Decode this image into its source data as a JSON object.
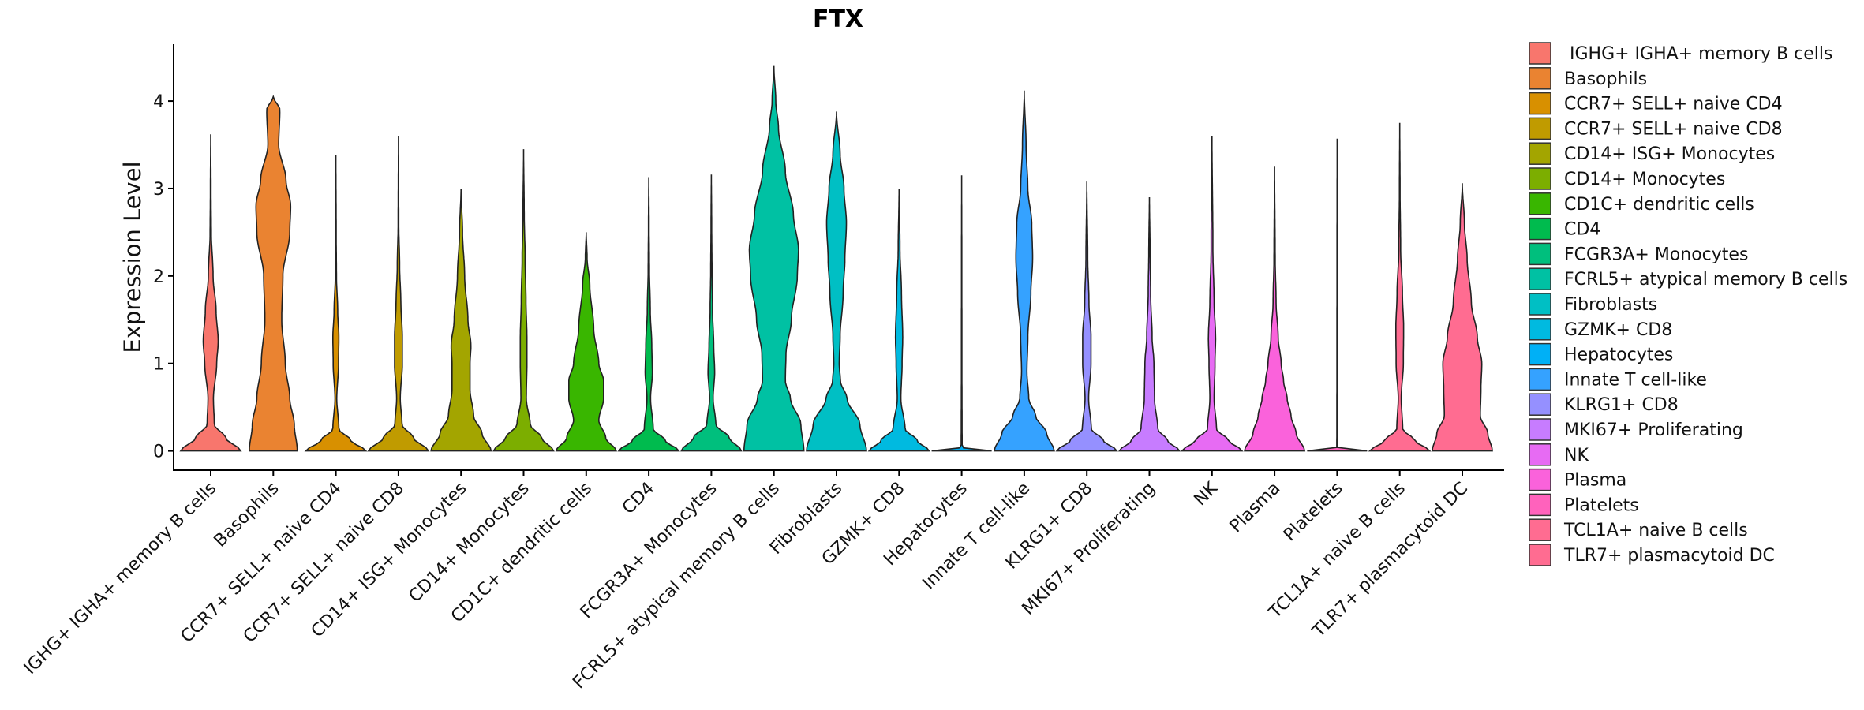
{
  "chart_data": {
    "type": "violin",
    "title": "FTX",
    "xlabel": "",
    "ylabel": "Expression Level",
    "ylim": [
      -0.22,
      4.65
    ],
    "yticks": [
      0,
      1,
      2,
      3,
      4
    ],
    "categories": [
      "IGHG+ IGHA+ memory B cells",
      "Basophils",
      "CCR7+ SELL+ naive CD4",
      "CCR7+ SELL+ naive CD8",
      "CD14+ ISG+ Monocytes",
      "CD14+ Monocytes",
      "CD1C+ dendritic cells",
      "CD4",
      "FCGR3A+ Monocytes",
      "FCRL5+ atypical memory B cells",
      "Fibroblasts",
      "GZMK+ CD8",
      "Hepatocytes",
      "Innate T cell-like",
      "KLRG1+ CD8",
      "MKI67+ Proliferating",
      "NK",
      "Plasma",
      "Platelets",
      "TCL1A+ naive B cells",
      "TLR7+ plasmacytoid DC"
    ],
    "legend_labels": [
      " IGHG+ IGHA+ memory B cells",
      "Basophils",
      "CCR7+ SELL+ naive CD4",
      "CCR7+ SELL+ naive CD8",
      "CD14+ ISG+ Monocytes",
      "CD14+ Monocytes",
      "CD1C+ dendritic cells",
      "CD4",
      "FCGR3A+ Monocytes",
      "FCRL5+ atypical memory B cells",
      "Fibroblasts",
      "GZMK+ CD8",
      "Hepatocytes",
      "Innate T cell-like",
      "KLRG1+ CD8",
      "MKI67+ Proliferating",
      "NK",
      "Plasma",
      "Platelets",
      "TCL1A+ naive B cells",
      "TLR7+ plasmacytoid DC"
    ],
    "colors": [
      "#F8766D",
      "#EA8331",
      "#D89000",
      "#C09B00",
      "#A3A500",
      "#7CAE00",
      "#39B600",
      "#00BB4E",
      "#00BF7D",
      "#00C1A3",
      "#00BFC4",
      "#00BAE0",
      "#00B0F6",
      "#35A2FF",
      "#9590FF",
      "#C77CFF",
      "#E76BF3",
      "#FA62DB",
      "#FF62BC",
      "#FF6C91",
      "#FF6C91"
    ],
    "legend_position": "right",
    "violins": [
      {
        "min": 0,
        "max": 3.62,
        "profile": [
          [
            0,
            1.0
          ],
          [
            0.15,
            0.5
          ],
          [
            0.3,
            0.12
          ],
          [
            0.6,
            0.09
          ],
          [
            1.0,
            0.2
          ],
          [
            1.25,
            0.25
          ],
          [
            1.6,
            0.18
          ],
          [
            2.0,
            0.08
          ],
          [
            2.5,
            0.02
          ],
          [
            3.0,
            0.01
          ],
          [
            3.62,
            0
          ]
        ]
      },
      {
        "min": 0,
        "max": 4.05,
        "profile": [
          [
            0,
            0.8
          ],
          [
            0.3,
            0.7
          ],
          [
            0.6,
            0.55
          ],
          [
            1.0,
            0.4
          ],
          [
            1.5,
            0.28
          ],
          [
            2.0,
            0.32
          ],
          [
            2.5,
            0.55
          ],
          [
            2.8,
            0.58
          ],
          [
            3.1,
            0.42
          ],
          [
            3.5,
            0.18
          ],
          [
            3.9,
            0.22
          ],
          [
            4.05,
            0
          ]
        ]
      },
      {
        "min": 0,
        "max": 3.38,
        "profile": [
          [
            0,
            1.0
          ],
          [
            0.12,
            0.5
          ],
          [
            0.25,
            0.1
          ],
          [
            0.6,
            0.03
          ],
          [
            1.0,
            0.09
          ],
          [
            1.3,
            0.1
          ],
          [
            1.6,
            0.06
          ],
          [
            2.0,
            0.02
          ],
          [
            2.5,
            0.01
          ],
          [
            3.38,
            0
          ]
        ]
      },
      {
        "min": 0,
        "max": 3.6,
        "profile": [
          [
            0,
            1.0
          ],
          [
            0.15,
            0.5
          ],
          [
            0.3,
            0.12
          ],
          [
            0.6,
            0.06
          ],
          [
            1.0,
            0.13
          ],
          [
            1.3,
            0.13
          ],
          [
            1.7,
            0.08
          ],
          [
            2.1,
            0.04
          ],
          [
            2.6,
            0.01
          ],
          [
            3.6,
            0
          ]
        ]
      },
      {
        "min": 0,
        "max": 3.0,
        "profile": [
          [
            0,
            1.0
          ],
          [
            0.2,
            0.7
          ],
          [
            0.4,
            0.42
          ],
          [
            0.7,
            0.3
          ],
          [
            1.0,
            0.3
          ],
          [
            1.2,
            0.33
          ],
          [
            1.5,
            0.23
          ],
          [
            2.0,
            0.12
          ],
          [
            2.5,
            0.05
          ],
          [
            3.0,
            0
          ]
        ]
      },
      {
        "min": 0,
        "max": 3.45,
        "profile": [
          [
            0,
            1.0
          ],
          [
            0.15,
            0.6
          ],
          [
            0.3,
            0.22
          ],
          [
            0.6,
            0.09
          ],
          [
            1.0,
            0.11
          ],
          [
            1.3,
            0.11
          ],
          [
            1.7,
            0.08
          ],
          [
            2.2,
            0.05
          ],
          [
            2.7,
            0.02
          ],
          [
            3.45,
            0
          ]
        ]
      },
      {
        "min": 0,
        "max": 2.5,
        "profile": [
          [
            0,
            1.0
          ],
          [
            0.15,
            0.65
          ],
          [
            0.35,
            0.42
          ],
          [
            0.6,
            0.58
          ],
          [
            0.8,
            0.58
          ],
          [
            1.0,
            0.42
          ],
          [
            1.4,
            0.25
          ],
          [
            1.9,
            0.12
          ],
          [
            2.2,
            0.03
          ],
          [
            2.5,
            0
          ]
        ]
      },
      {
        "min": 0,
        "max": 3.13,
        "profile": [
          [
            0,
            1.0
          ],
          [
            0.12,
            0.55
          ],
          [
            0.25,
            0.15
          ],
          [
            0.6,
            0.06
          ],
          [
            0.9,
            0.12
          ],
          [
            1.2,
            0.1
          ],
          [
            1.6,
            0.05
          ],
          [
            2.1,
            0.02
          ],
          [
            2.6,
            0.01
          ],
          [
            3.13,
            0
          ]
        ]
      },
      {
        "min": 0,
        "max": 3.16,
        "profile": [
          [
            0,
            1.0
          ],
          [
            0.15,
            0.6
          ],
          [
            0.3,
            0.15
          ],
          [
            0.6,
            0.06
          ],
          [
            0.9,
            0.11
          ],
          [
            1.2,
            0.08
          ],
          [
            1.6,
            0.04
          ],
          [
            2.1,
            0.02
          ],
          [
            2.6,
            0.01
          ],
          [
            3.16,
            0
          ]
        ]
      },
      {
        "min": 0,
        "max": 4.4,
        "profile": [
          [
            0,
            1.0
          ],
          [
            0.3,
            0.9
          ],
          [
            0.6,
            0.55
          ],
          [
            0.8,
            0.38
          ],
          [
            1.1,
            0.4
          ],
          [
            1.5,
            0.58
          ],
          [
            2.0,
            0.78
          ],
          [
            2.3,
            0.82
          ],
          [
            2.7,
            0.65
          ],
          [
            3.2,
            0.38
          ],
          [
            3.7,
            0.15
          ],
          [
            4.0,
            0.06
          ],
          [
            4.4,
            0
          ]
        ]
      },
      {
        "min": 0,
        "max": 3.88,
        "profile": [
          [
            0,
            1.0
          ],
          [
            0.3,
            0.78
          ],
          [
            0.6,
            0.35
          ],
          [
            0.8,
            0.13
          ],
          [
            1.0,
            0.09
          ],
          [
            1.3,
            0.12
          ],
          [
            1.8,
            0.22
          ],
          [
            2.2,
            0.28
          ],
          [
            2.6,
            0.33
          ],
          [
            3.0,
            0.25
          ],
          [
            3.4,
            0.12
          ],
          [
            3.88,
            0
          ]
        ]
      },
      {
        "min": 0,
        "max": 3.0,
        "profile": [
          [
            0,
            1.0
          ],
          [
            0.12,
            0.6
          ],
          [
            0.25,
            0.2
          ],
          [
            0.6,
            0.06
          ],
          [
            1.0,
            0.1
          ],
          [
            1.3,
            0.12
          ],
          [
            1.8,
            0.08
          ],
          [
            2.3,
            0.03
          ],
          [
            3.0,
            0
          ]
        ]
      },
      {
        "min": 0,
        "max": 3.15,
        "profile": [
          [
            0,
            1.0
          ],
          [
            0.02,
            0.3
          ],
          [
            0.04,
            0.015
          ],
          [
            1.0,
            0.008
          ],
          [
            2.0,
            0.006
          ],
          [
            3.15,
            0
          ]
        ]
      },
      {
        "min": 0,
        "max": 4.12,
        "profile": [
          [
            0,
            1.0
          ],
          [
            0.2,
            0.75
          ],
          [
            0.4,
            0.38
          ],
          [
            0.6,
            0.15
          ],
          [
            0.9,
            0.09
          ],
          [
            1.3,
            0.12
          ],
          [
            1.8,
            0.22
          ],
          [
            2.2,
            0.28
          ],
          [
            2.6,
            0.25
          ],
          [
            3.0,
            0.12
          ],
          [
            3.5,
            0.06
          ],
          [
            4.12,
            0
          ]
        ]
      },
      {
        "min": 0,
        "max": 3.08,
        "profile": [
          [
            0,
            1.0
          ],
          [
            0.12,
            0.55
          ],
          [
            0.25,
            0.15
          ],
          [
            0.6,
            0.06
          ],
          [
            1.0,
            0.14
          ],
          [
            1.3,
            0.14
          ],
          [
            1.7,
            0.07
          ],
          [
            2.2,
            0.03
          ],
          [
            3.08,
            0
          ]
        ]
      },
      {
        "min": 0,
        "max": 2.9,
        "profile": [
          [
            0,
            1.0
          ],
          [
            0.12,
            0.6
          ],
          [
            0.25,
            0.28
          ],
          [
            0.6,
            0.17
          ],
          [
            1.0,
            0.15
          ],
          [
            1.3,
            0.09
          ],
          [
            1.8,
            0.04
          ],
          [
            2.3,
            0.02
          ],
          [
            2.9,
            0
          ]
        ]
      },
      {
        "min": 0,
        "max": 3.6,
        "profile": [
          [
            0,
            1.0
          ],
          [
            0.12,
            0.55
          ],
          [
            0.25,
            0.15
          ],
          [
            0.6,
            0.07
          ],
          [
            1.0,
            0.1
          ],
          [
            1.3,
            0.12
          ],
          [
            1.7,
            0.07
          ],
          [
            2.3,
            0.03
          ],
          [
            3.6,
            0
          ]
        ]
      },
      {
        "min": 0,
        "max": 3.25,
        "profile": [
          [
            0,
            1.0
          ],
          [
            0.2,
            0.72
          ],
          [
            0.4,
            0.55
          ],
          [
            0.6,
            0.42
          ],
          [
            0.8,
            0.3
          ],
          [
            1.0,
            0.22
          ],
          [
            1.3,
            0.12
          ],
          [
            1.7,
            0.05
          ],
          [
            2.2,
            0.02
          ],
          [
            3.25,
            0
          ]
        ]
      },
      {
        "min": 0,
        "max": 3.57,
        "profile": [
          [
            0,
            1.0
          ],
          [
            0.02,
            0.3
          ],
          [
            0.04,
            0.012
          ],
          [
            1.0,
            0.008
          ],
          [
            2.0,
            0.006
          ],
          [
            3.57,
            0
          ]
        ]
      },
      {
        "min": 0,
        "max": 3.75,
        "profile": [
          [
            0,
            1.0
          ],
          [
            0.12,
            0.5
          ],
          [
            0.25,
            0.1
          ],
          [
            0.6,
            0.05
          ],
          [
            1.0,
            0.12
          ],
          [
            1.4,
            0.13
          ],
          [
            1.8,
            0.09
          ],
          [
            2.3,
            0.03
          ],
          [
            3.0,
            0.01
          ],
          [
            3.75,
            0
          ]
        ]
      },
      {
        "min": 0,
        "max": 3.06,
        "profile": [
          [
            0,
            1.0
          ],
          [
            0.2,
            0.85
          ],
          [
            0.4,
            0.6
          ],
          [
            0.7,
            0.62
          ],
          [
            1.0,
            0.65
          ],
          [
            1.3,
            0.5
          ],
          [
            1.7,
            0.3
          ],
          [
            2.2,
            0.16
          ],
          [
            2.6,
            0.07
          ],
          [
            3.06,
            0
          ]
        ]
      }
    ]
  }
}
